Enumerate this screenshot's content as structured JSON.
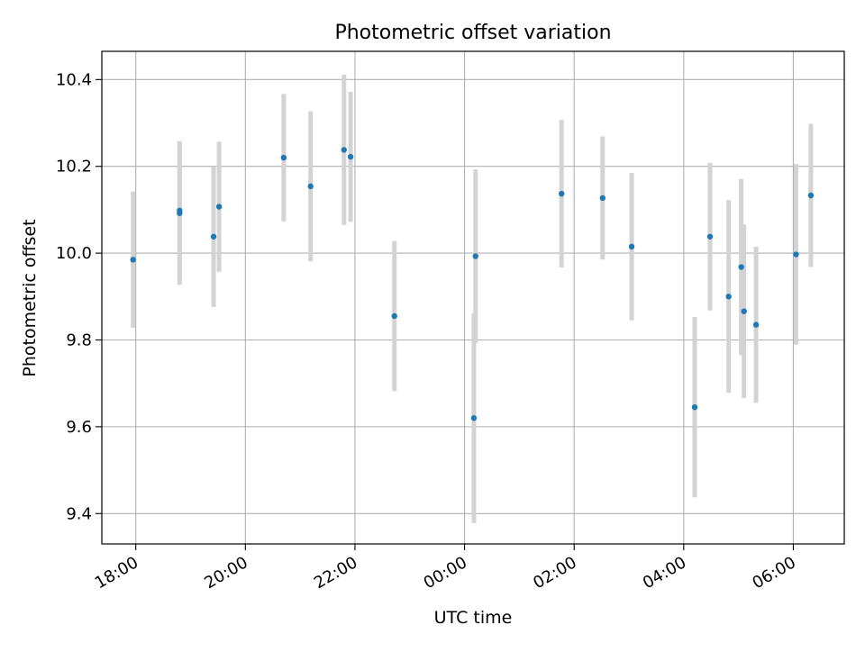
{
  "chart_data": {
    "type": "scatter",
    "title": "Photometric offset variation",
    "xlabel": "UTC time",
    "ylabel": "Photometric offset",
    "x_unit": "hours after 18:00 UTC",
    "xlim": [
      -0.62,
      12.93
    ],
    "ylim": [
      9.33,
      10.465
    ],
    "x_ticks": [
      {
        "value": 0,
        "label": "18:00"
      },
      {
        "value": 2,
        "label": "20:00"
      },
      {
        "value": 4,
        "label": "22:00"
      },
      {
        "value": 6,
        "label": "00:00"
      },
      {
        "value": 8,
        "label": "02:00"
      },
      {
        "value": 10,
        "label": "04:00"
      },
      {
        "value": 12,
        "label": "06:00"
      }
    ],
    "y_ticks": [
      {
        "value": 9.4,
        "label": "9.4"
      },
      {
        "value": 9.6,
        "label": "9.6"
      },
      {
        "value": 9.8,
        "label": "9.8"
      },
      {
        "value": 10.0,
        "label": "10.0"
      },
      {
        "value": 10.2,
        "label": "10.2"
      },
      {
        "value": 10.4,
        "label": "10.4"
      }
    ],
    "grid": true,
    "colors": {
      "point": "#1f77b4",
      "errorbar": "#d3d3d3",
      "grid": "#b0b0b0"
    },
    "series": [
      {
        "points": [
          {
            "time": "17:57",
            "x": -0.05,
            "y": 9.985,
            "err": 0.157
          },
          {
            "time": "18:48",
            "x": 0.8,
            "y": 10.092,
            "err": 0.165
          },
          {
            "time": "18:48",
            "x": 0.8,
            "y": 10.098,
            "err": 0.16
          },
          {
            "time": "19:25",
            "x": 1.42,
            "y": 10.038,
            "err": 0.162
          },
          {
            "time": "19:31",
            "x": 1.52,
            "y": 10.107,
            "err": 0.15
          },
          {
            "time": "20:42",
            "x": 2.7,
            "y": 10.22,
            "err": 0.147
          },
          {
            "time": "21:11",
            "x": 3.19,
            "y": 10.154,
            "err": 0.173
          },
          {
            "time": "21:48",
            "x": 3.8,
            "y": 10.238,
            "err": 0.173
          },
          {
            "time": "21:55",
            "x": 3.92,
            "y": 10.222,
            "err": 0.15
          },
          {
            "time": "22:43",
            "x": 4.72,
            "y": 9.855,
            "err": 0.173
          },
          {
            "time": "00:10",
            "x": 6.17,
            "y": 9.62,
            "err": 0.242
          },
          {
            "time": "00:12",
            "x": 6.2,
            "y": 9.993,
            "err": 0.2
          },
          {
            "time": "01:46",
            "x": 7.77,
            "y": 10.137,
            "err": 0.17
          },
          {
            "time": "02:31",
            "x": 8.52,
            "y": 10.127,
            "err": 0.142
          },
          {
            "time": "03:03",
            "x": 9.05,
            "y": 10.015,
            "err": 0.17
          },
          {
            "time": "04:12",
            "x": 10.2,
            "y": 9.645,
            "err": 0.208
          },
          {
            "time": "04:29",
            "x": 10.48,
            "y": 10.038,
            "err": 0.17
          },
          {
            "time": "04:49",
            "x": 10.82,
            "y": 9.9,
            "err": 0.222
          },
          {
            "time": "05:03",
            "x": 11.05,
            "y": 9.968,
            "err": 0.203
          },
          {
            "time": "05:06",
            "x": 11.1,
            "y": 9.866,
            "err": 0.2
          },
          {
            "time": "05:19",
            "x": 11.32,
            "y": 9.835,
            "err": 0.18
          },
          {
            "time": "06:03",
            "x": 12.05,
            "y": 9.997,
            "err": 0.208
          },
          {
            "time": "06:19",
            "x": 12.32,
            "y": 10.133,
            "err": 0.165
          }
        ]
      }
    ]
  }
}
